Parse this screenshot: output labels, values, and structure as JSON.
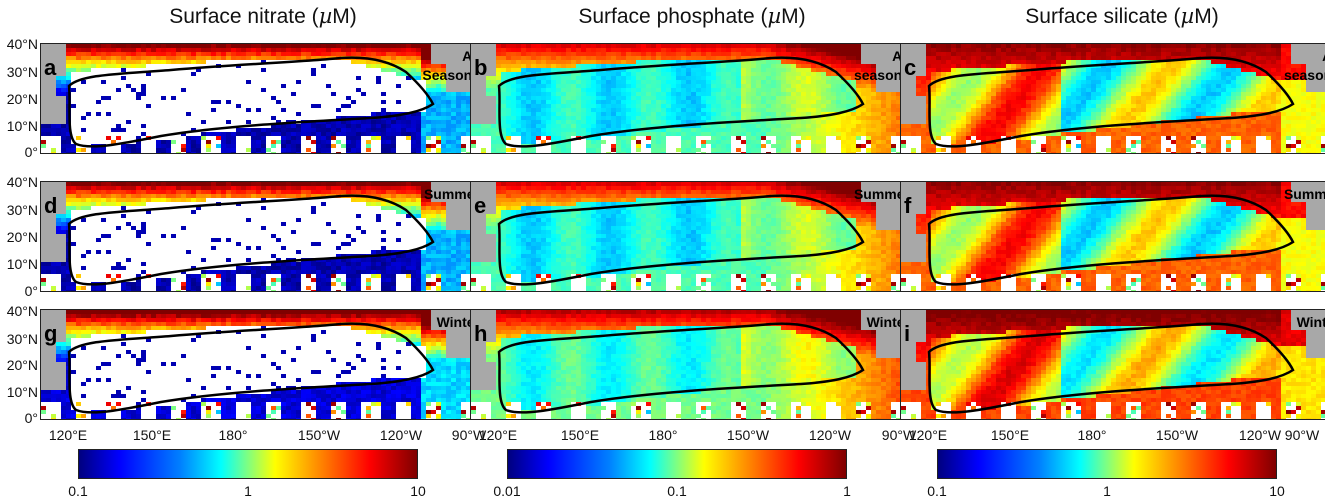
{
  "titles": {
    "nitrate": {
      "prefix": "Surface nitrate (",
      "unit": "µ",
      "suffix": "M)"
    },
    "phosphate": {
      "prefix": "Surface phosphate (",
      "unit": "µ",
      "suffix": "M)"
    },
    "silicate": {
      "prefix": "Surface silicate (",
      "unit": "µ",
      "suffix": "M)"
    }
  },
  "lat_labels": [
    "40°N",
    "30°N",
    "20°N",
    "10°N",
    "0°"
  ],
  "lon_labels": [
    "120°E",
    "150°E",
    "180°",
    "150°W",
    "120°W",
    "90°W"
  ],
  "panels": [
    {
      "id": "a",
      "season": "All\nSeasons"
    },
    {
      "id": "b",
      "season": "All\nseasons"
    },
    {
      "id": "c",
      "season": "All\nseasons"
    },
    {
      "id": "d",
      "season": "Summer"
    },
    {
      "id": "e",
      "season": "Summer"
    },
    {
      "id": "f",
      "season": "Summer"
    },
    {
      "id": "g",
      "season": "Winter"
    },
    {
      "id": "h",
      "season": "Winter"
    },
    {
      "id": "i",
      "season": "Winter"
    }
  ],
  "colorbars": {
    "nitrate": [
      "0.1",
      "1",
      "10"
    ],
    "phosphate": [
      "0.01",
      "0.1",
      "1"
    ],
    "silicate": [
      "0.1",
      "1",
      "10"
    ]
  },
  "colors": {
    "land": "#a8a8a8",
    "contour": "#000000",
    "nodata": "#ffffff"
  }
}
